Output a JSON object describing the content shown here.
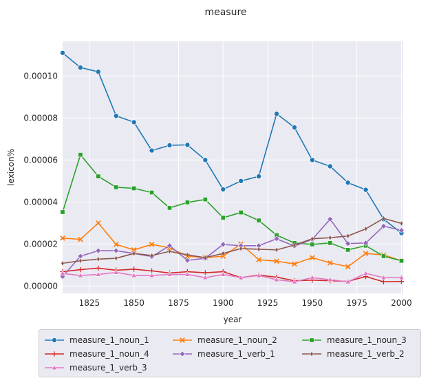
{
  "chart_data": {
    "type": "line",
    "title": "measure",
    "xlabel": "year",
    "ylabel": "lexicon%",
    "xlim": [
      1810,
      2001
    ],
    "ylim": [
      -3.5e-06,
      0.0001165
    ],
    "xticks": [
      1825,
      1850,
      1875,
      1900,
      1925,
      1950,
      1975,
      2000
    ],
    "xtick_labels": [
      "1825",
      "1850",
      "1875",
      "1900",
      "1925",
      "1950",
      "1975",
      "2000"
    ],
    "yticks": [
      0.0,
      2e-05,
      4e-05,
      6e-05,
      8e-05,
      0.0001
    ],
    "ytick_labels": [
      "0.00000",
      "0.00002",
      "0.00004",
      "0.00006",
      "0.00008",
      "0.00010"
    ],
    "grid": true,
    "legend_position": "bottom",
    "x": [
      1810,
      1820,
      1830,
      1840,
      1850,
      1860,
      1870,
      1880,
      1890,
      1900,
      1910,
      1920,
      1930,
      1940,
      1950,
      1960,
      1970,
      1980,
      1990,
      2000
    ],
    "series": [
      {
        "name": "measure_1_noun_1",
        "color": "#1f77b4",
        "marker": "circle",
        "values": [
          0.000111,
          0.000104,
          0.000102,
          8.1e-05,
          7.8e-05,
          6.45e-05,
          6.7e-05,
          6.72e-05,
          6e-05,
          4.6e-05,
          5e-05,
          5.22e-05,
          8.2e-05,
          7.55e-05,
          6e-05,
          5.7e-05,
          4.92e-05,
          4.58e-05,
          3.18e-05,
          2.52e-05
        ]
      },
      {
        "name": "measure_1_noun_2",
        "color": "#ff7f0e",
        "marker": "x",
        "values": [
          2.28e-05,
          2.22e-05,
          3e-05,
          1.98e-05,
          1.72e-05,
          1.98e-05,
          1.82e-05,
          1.42e-05,
          1.35e-05,
          1.42e-05,
          2e-05,
          1.25e-05,
          1.18e-05,
          1.05e-05,
          1.35e-05,
          1.1e-05,
          9.2e-06,
          1.55e-05,
          1.48e-05,
          1.2e-05
        ]
      },
      {
        "name": "measure_1_noun_3",
        "color": "#2ca02c",
        "marker": "square",
        "values": [
          3.52e-05,
          6.25e-05,
          5.22e-05,
          4.7e-05,
          4.65e-05,
          4.45e-05,
          3.72e-05,
          3.98e-05,
          4.12e-05,
          3.25e-05,
          3.5e-05,
          3.12e-05,
          2.42e-05,
          2.05e-05,
          1.98e-05,
          2.05e-05,
          1.72e-05,
          1.92e-05,
          1.42e-05,
          1.2e-05
        ]
      },
      {
        "name": "measure_1_noun_4",
        "color": "#d62728",
        "marker": "plus",
        "values": [
          6.8e-06,
          7.8e-06,
          8.5e-06,
          7.5e-06,
          8e-06,
          7.2e-06,
          6.2e-06,
          6.8e-06,
          6.3e-06,
          6.8e-06,
          4e-06,
          5.2e-06,
          4.2e-06,
          2.5e-06,
          2.8e-06,
          2.5e-06,
          2.2e-06,
          4.5e-06,
          2e-06,
          2.2e-06
        ]
      },
      {
        "name": "measure_1_verb_1",
        "color": "#9467bd",
        "marker": "diamond",
        "values": [
          4.5e-06,
          1.42e-05,
          1.68e-05,
          1.68e-05,
          1.55e-05,
          1.4e-05,
          1.92e-05,
          1.22e-05,
          1.32e-05,
          1.98e-05,
          1.92e-05,
          1.92e-05,
          2.25e-05,
          1.9e-05,
          2.22e-05,
          3.18e-05,
          2.02e-05,
          2.05e-05,
          2.85e-05,
          2.65e-05
        ]
      },
      {
        "name": "measure_1_verb_2",
        "color": "#8c564b",
        "marker": "thin_diamond",
        "values": [
          1.08e-05,
          1.2e-05,
          1.28e-05,
          1.32e-05,
          1.55e-05,
          1.45e-05,
          1.65e-05,
          1.48e-05,
          1.35e-05,
          1.55e-05,
          1.78e-05,
          1.75e-05,
          1.72e-05,
          1.95e-05,
          2.25e-05,
          2.3e-05,
          2.38e-05,
          2.72e-05,
          3.22e-05,
          2.98e-05
        ]
      },
      {
        "name": "measure_1_verb_3",
        "color": "#e377c2",
        "marker": "triangle",
        "values": [
          6e-06,
          5e-06,
          5.5e-06,
          6.5e-06,
          5e-06,
          5e-06,
          5.5e-06,
          5.5e-06,
          4e-06,
          5.5e-06,
          4e-06,
          5e-06,
          3e-06,
          2e-06,
          4e-06,
          3e-06,
          2e-06,
          6e-06,
          4e-06,
          4e-06
        ]
      }
    ]
  }
}
